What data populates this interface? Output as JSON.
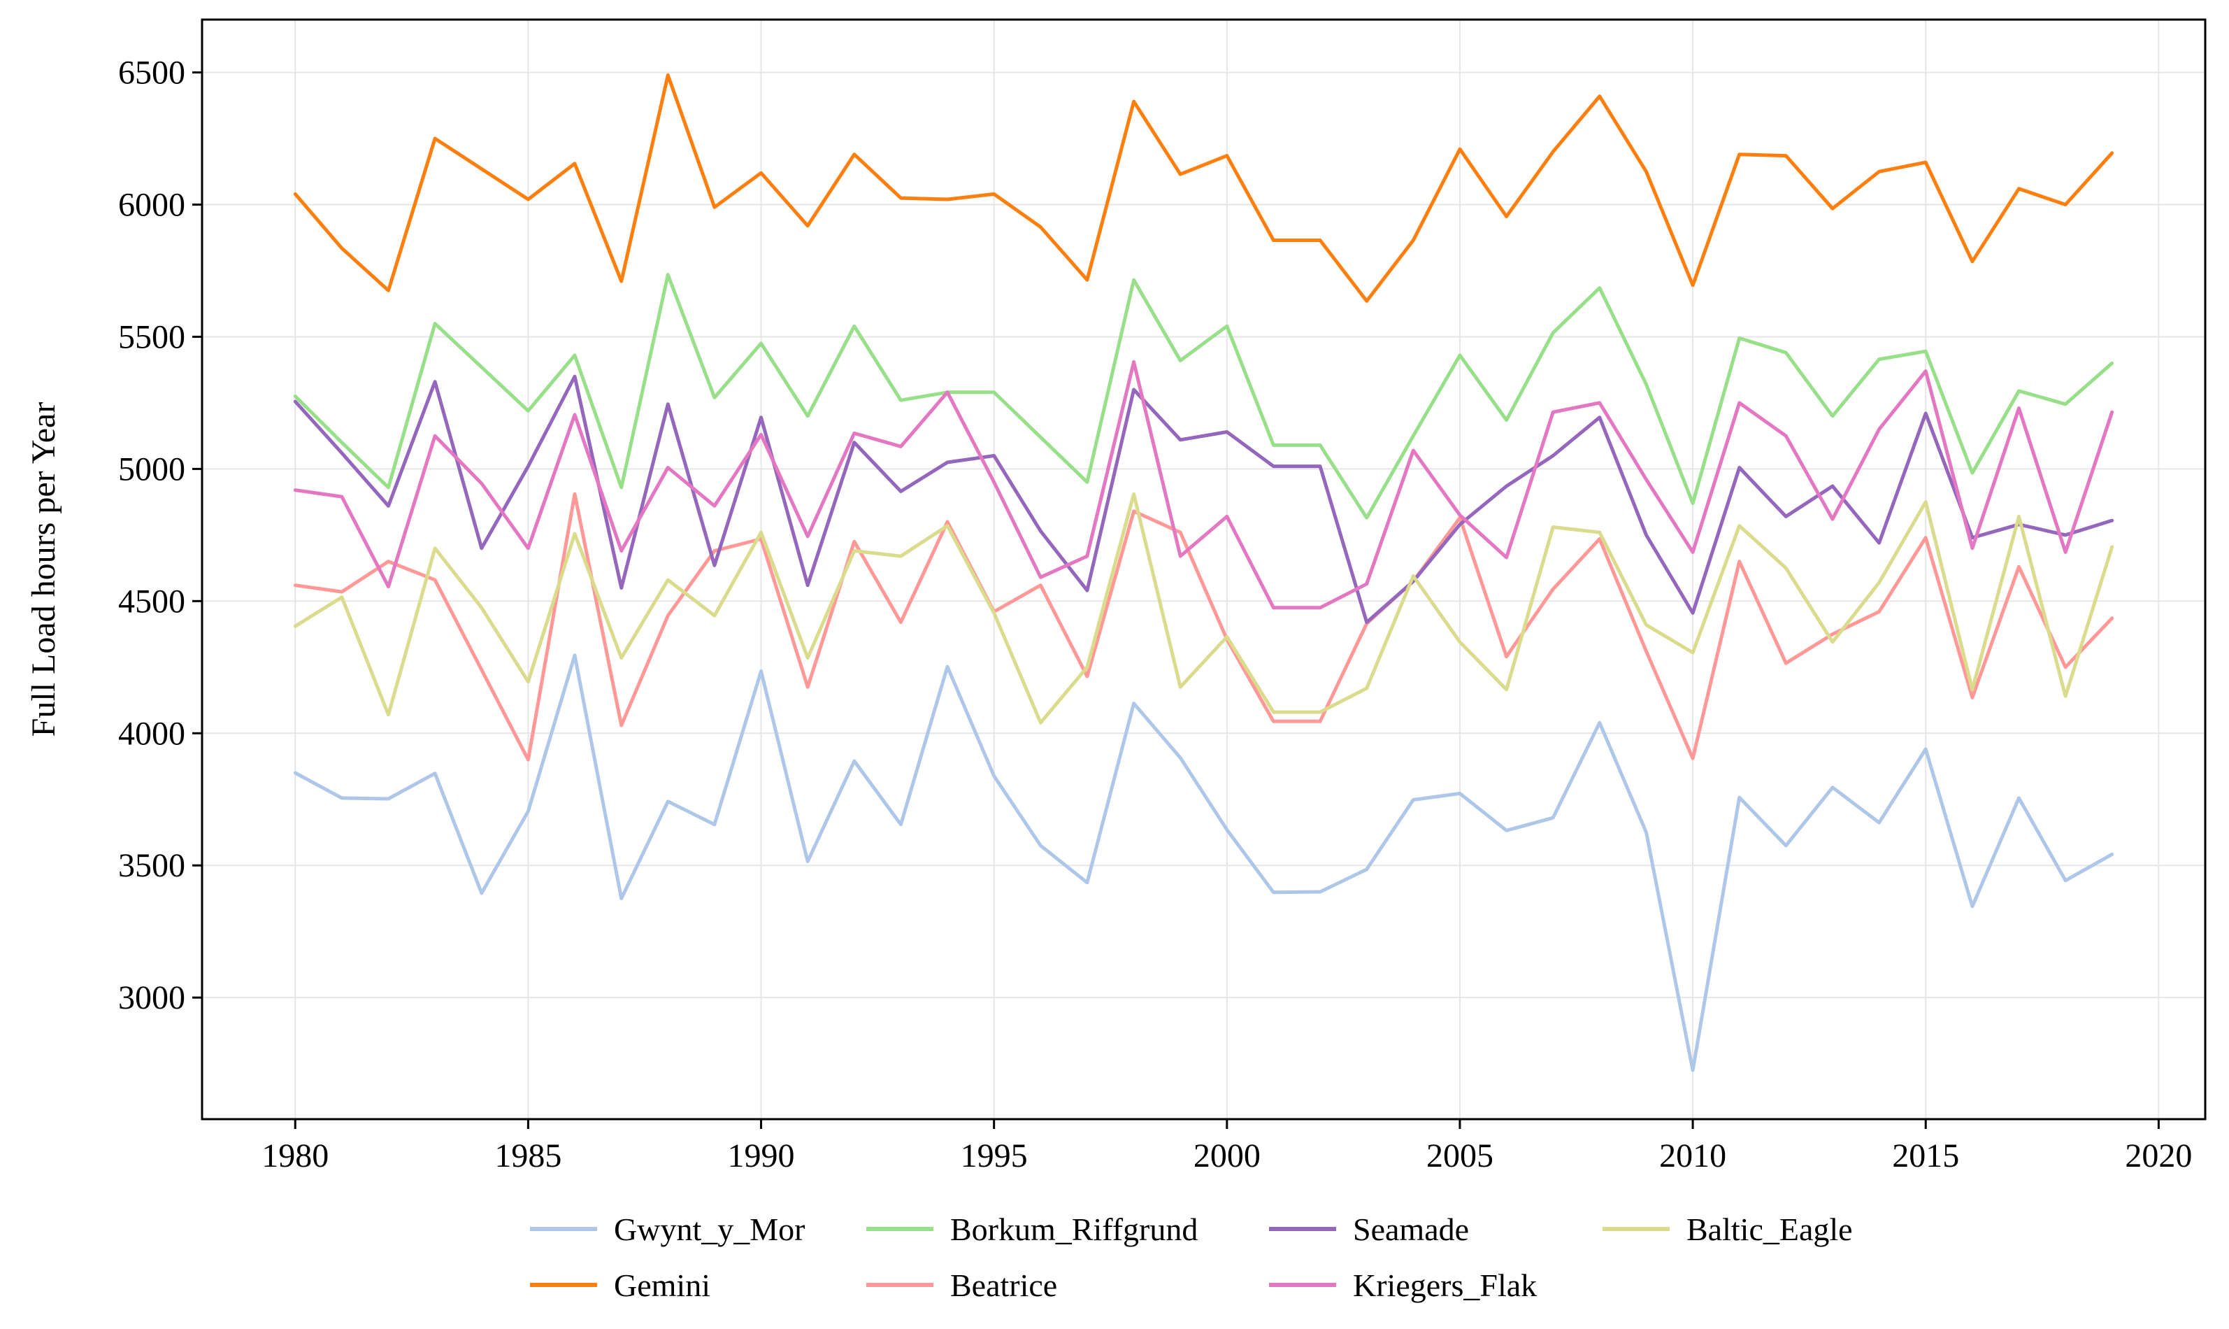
{
  "chart_data": {
    "type": "line",
    "title": "",
    "xlabel": "",
    "ylabel": "Full Load hours per Year",
    "xlim": [
      1978,
      2021
    ],
    "ylim": [
      2540,
      6700
    ],
    "xticks": [
      1980,
      1985,
      1990,
      1995,
      2000,
      2005,
      2010,
      2015,
      2020
    ],
    "yticks": [
      3000,
      3500,
      4000,
      4500,
      5000,
      5500,
      6000,
      6500
    ],
    "grid": true,
    "legend_position": "bottom-center",
    "legend_columns": 4,
    "x": [
      1980,
      1981,
      1982,
      1983,
      1984,
      1985,
      1986,
      1987,
      1988,
      1989,
      1990,
      1991,
      1992,
      1993,
      1994,
      1995,
      1996,
      1997,
      1998,
      1999,
      2000,
      2001,
      2002,
      2003,
      2004,
      2005,
      2006,
      2007,
      2008,
      2009,
      2010,
      2011,
      2012,
      2013,
      2014,
      2015,
      2016,
      2017,
      2018,
      2019
    ],
    "series": [
      {
        "name": "Gwynt_y_Mor",
        "color": "#aec7e8",
        "values": [
          3850,
          3755,
          3752,
          3848,
          3395,
          3705,
          4295,
          3375,
          3742,
          3655,
          4235,
          3515,
          3895,
          3655,
          4252,
          3838,
          3575,
          3435,
          4113,
          3907,
          3635,
          3398,
          3400,
          3485,
          3748,
          3772,
          3632,
          3680,
          4040,
          3625,
          2725,
          3757,
          3575,
          3795,
          3662,
          3940,
          3345,
          3755,
          3443,
          3542
        ]
      },
      {
        "name": "Gemini",
        "color": "#ff7f0e",
        "values": [
          6040,
          5835,
          5675,
          6250,
          6135,
          6020,
          6155,
          5710,
          6490,
          5990,
          6120,
          5920,
          6190,
          6025,
          6020,
          6040,
          5915,
          5715,
          6390,
          6115,
          6185,
          5865,
          5865,
          5635,
          5865,
          6210,
          5955,
          6200,
          6410,
          6125,
          5695,
          6190,
          6185,
          5985,
          6125,
          6160,
          5785,
          6060,
          6000,
          6195
        ]
      },
      {
        "name": "Borkum_Riffgrund",
        "color": "#98df8a",
        "values": [
          5275,
          5100,
          4930,
          5550,
          5385,
          5220,
          5430,
          4930,
          5735,
          5270,
          5475,
          5200,
          5540,
          5260,
          5290,
          5290,
          5120,
          4950,
          5715,
          5410,
          5540,
          5090,
          5090,
          4815,
          5125,
          5430,
          5185,
          5515,
          5685,
          5320,
          4870,
          5495,
          5440,
          5200,
          5415,
          5445,
          4985,
          5295,
          5245,
          5400
        ]
      },
      {
        "name": "Beatrice",
        "color": "#ff9896",
        "values": [
          4560,
          4535,
          4650,
          4580,
          4240,
          3900,
          4905,
          4030,
          4445,
          4690,
          4735,
          4175,
          4725,
          4420,
          4800,
          4460,
          4560,
          4215,
          4840,
          4760,
          4355,
          4045,
          4045,
          4415,
          4575,
          4815,
          4290,
          4545,
          4735,
          4310,
          3905,
          4650,
          4265,
          4375,
          4460,
          4740,
          4135,
          4630,
          4250,
          4435
        ]
      },
      {
        "name": "Seamade",
        "color": "#9467bd",
        "values": [
          5255,
          5060,
          4860,
          5330,
          4700,
          5010,
          5350,
          4550,
          5245,
          4635,
          5195,
          4560,
          5100,
          4915,
          5025,
          5050,
          4765,
          4540,
          5300,
          5110,
          5140,
          5010,
          5010,
          4420,
          4575,
          4790,
          4935,
          5050,
          5195,
          4750,
          4455,
          5005,
          4820,
          4935,
          4720,
          5210,
          4740,
          4790,
          4750,
          4805
        ]
      },
      {
        "name": "Kriegers_Flak",
        "color": "#e377c2",
        "values": [
          4920,
          4895,
          4555,
          5125,
          4945,
          4700,
          5205,
          4690,
          5005,
          4860,
          5130,
          4745,
          5135,
          5085,
          5290,
          4950,
          4590,
          4670,
          5405,
          4670,
          4820,
          4475,
          4475,
          4565,
          5070,
          4825,
          4665,
          5215,
          5250,
          4960,
          4685,
          5250,
          5125,
          4810,
          5150,
          5370,
          4700,
          5230,
          4685,
          5215
        ]
      },
      {
        "name": "Baltic_Eagle",
        "color": "#dbdb8d",
        "values": [
          4405,
          4515,
          4070,
          4700,
          4475,
          4195,
          4755,
          4285,
          4580,
          4445,
          4760,
          4285,
          4690,
          4670,
          4785,
          4455,
          4040,
          4250,
          4905,
          4175,
          4365,
          4080,
          4080,
          4170,
          4595,
          4345,
          4165,
          4780,
          4760,
          4410,
          4305,
          4785,
          4625,
          4345,
          4570,
          4875,
          4165,
          4820,
          4140,
          4705
        ]
      }
    ]
  }
}
